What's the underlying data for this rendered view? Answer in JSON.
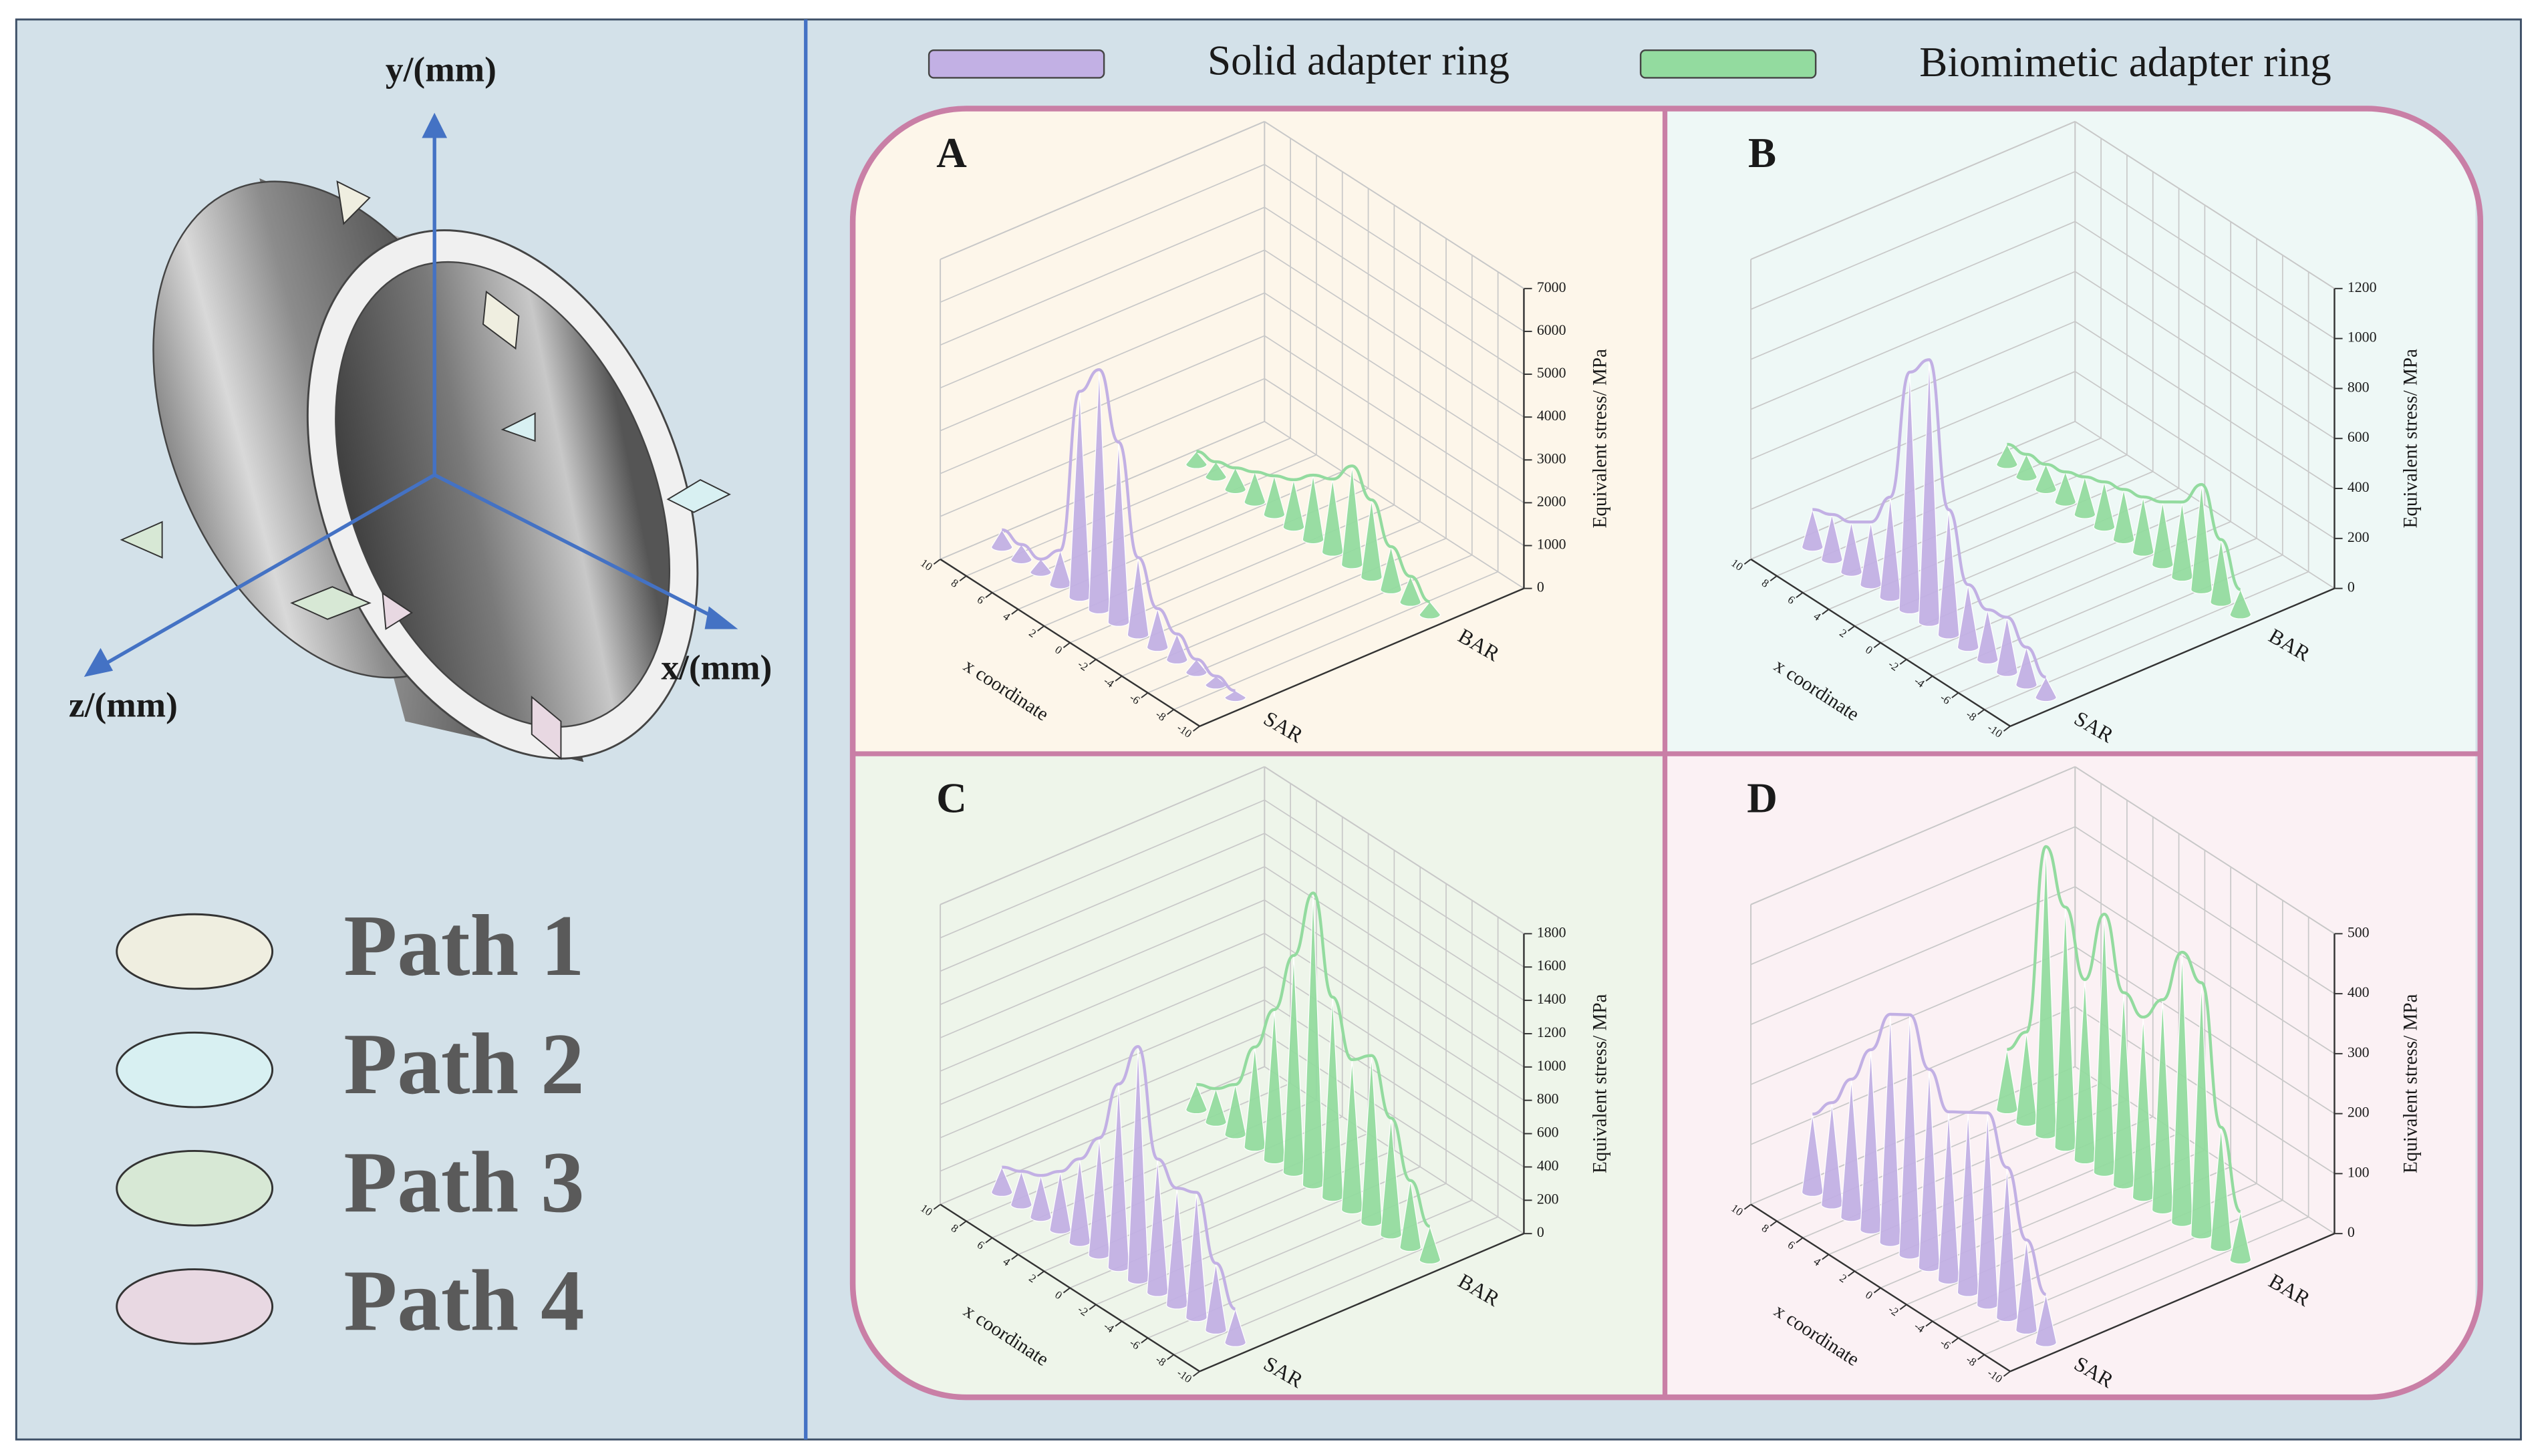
{
  "legend": {
    "solid": "Solid adapter ring",
    "biomimetic": "Biomimetic adapter ring"
  },
  "diagram": {
    "axes": {
      "y": "y/(mm)",
      "x": "x/(mm)",
      "z": "z/(mm)"
    },
    "paths": [
      {
        "label": "Path 1",
        "color": "#efeee0"
      },
      {
        "label": "Path 2",
        "color": "#d8f0f2"
      },
      {
        "label": "Path 3",
        "color": "#d7e8d5"
      },
      {
        "label": "Path 4",
        "color": "#e8d8e2"
      }
    ]
  },
  "chart_data": [
    {
      "type": "cone",
      "label": "A",
      "background": "#fdf6ea",
      "x_label": "x coordinate",
      "y_label": "Equivalent stress/ MPa",
      "x": [
        9,
        7.5,
        6,
        4.5,
        3,
        1.5,
        0,
        -1.5,
        -3,
        -4.5,
        -6,
        -7.5,
        -9
      ],
      "xlim": [
        10,
        -10
      ],
      "xticks": [
        10,
        8,
        6,
        4,
        2,
        0,
        -2,
        -4,
        -6,
        -8,
        -10
      ],
      "ylim": [
        0,
        7000
      ],
      "yticks": [
        0,
        1000,
        2000,
        3000,
        4000,
        5000,
        6000,
        7000
      ],
      "series": [
        {
          "name": "SAR",
          "color": "#c2b0e4",
          "values": [
            400,
            350,
            300,
            800,
            4800,
            5600,
            4200,
            1800,
            900,
            600,
            300,
            200,
            150
          ]
        },
        {
          "name": "BAR",
          "color": "#93db9f",
          "values": [
            300,
            350,
            500,
            700,
            900,
            1100,
            1500,
            1700,
            2300,
            1800,
            1000,
            600,
            300
          ]
        }
      ]
    },
    {
      "type": "cone",
      "label": "B",
      "background": "#eef8f6",
      "x_label": "x coordinate",
      "y_label": "Equivalent stress/ MPa",
      "x": [
        9,
        7.5,
        6,
        4.5,
        3,
        1.5,
        0,
        -1.5,
        -3,
        -4.5,
        -6,
        -7.5,
        -9
      ],
      "xlim": [
        10,
        -10
      ],
      "xticks": [
        10,
        8,
        6,
        4,
        2,
        0,
        -2,
        -4,
        -6,
        -8,
        -10
      ],
      "ylim": [
        0,
        1200
      ],
      "yticks": [
        0,
        200,
        400,
        600,
        800,
        1000,
        1200
      ],
      "series": [
        {
          "name": "SAR",
          "color": "#c2b0e4",
          "values": [
            150,
            180,
            200,
            250,
            400,
            950,
            1050,
            500,
            250,
            200,
            220,
            150,
            80
          ]
        },
        {
          "name": "BAR",
          "color": "#93db9f",
          "values": [
            80,
            90,
            100,
            120,
            150,
            180,
            200,
            220,
            250,
            300,
            420,
            250,
            100
          ]
        }
      ]
    },
    {
      "type": "cone",
      "label": "C",
      "background": "#eef5ea",
      "x_label": "x coordinate",
      "y_label": "Equivalent stress/ MPa",
      "x": [
        9,
        7.5,
        6,
        4.5,
        3,
        1.5,
        0,
        -1.5,
        -3,
        -4.5,
        -6,
        -7.5,
        -9
      ],
      "xlim": [
        10,
        -10
      ],
      "xticks": [
        10,
        8,
        6,
        4,
        2,
        0,
        -2,
        -4,
        -6,
        -8,
        -10
      ],
      "ylim": [
        0,
        1800
      ],
      "yticks": [
        0,
        200,
        400,
        600,
        800,
        1000,
        1200,
        1400,
        1600,
        1800
      ],
      "series": [
        {
          "name": "SAR",
          "color": "#c2b0e4",
          "values": [
            150,
            200,
            250,
            350,
            500,
            700,
            1100,
            1400,
            800,
            700,
            750,
            400,
            200
          ]
        },
        {
          "name": "BAR",
          "color": "#93db9f",
          "values": [
            150,
            200,
            300,
            600,
            900,
            1300,
            1750,
            1200,
            900,
            1000,
            700,
            400,
            200
          ]
        }
      ]
    },
    {
      "type": "cone",
      "label": "D",
      "background": "#fbf1f4",
      "x_label": "x coordinate",
      "y_label": "Equivalent stress/ MPa",
      "x": [
        9,
        7.5,
        6,
        4.5,
        3,
        1.5,
        0,
        -1.5,
        -3,
        -4.5,
        -6,
        -7.5,
        -9
      ],
      "xlim": [
        10,
        -10
      ],
      "xticks": [
        10,
        8,
        6,
        4,
        2,
        0,
        -2,
        -4,
        -6,
        -8,
        -10
      ],
      "ylim": [
        0,
        500
      ],
      "yticks": [
        0,
        100,
        200,
        300,
        400,
        500
      ],
      "series": [
        {
          "name": "SAR",
          "color": "#c2b0e4",
          "values": [
            130,
            170,
            230,
            300,
            380,
            400,
            330,
            280,
            300,
            320,
            250,
            150,
            80
          ]
        },
        {
          "name": "BAR",
          "color": "#93db9f",
          "values": [
            100,
            150,
            480,
            400,
            300,
            430,
            320,
            300,
            350,
            450,
            420,
            200,
            80
          ]
        }
      ]
    }
  ]
}
